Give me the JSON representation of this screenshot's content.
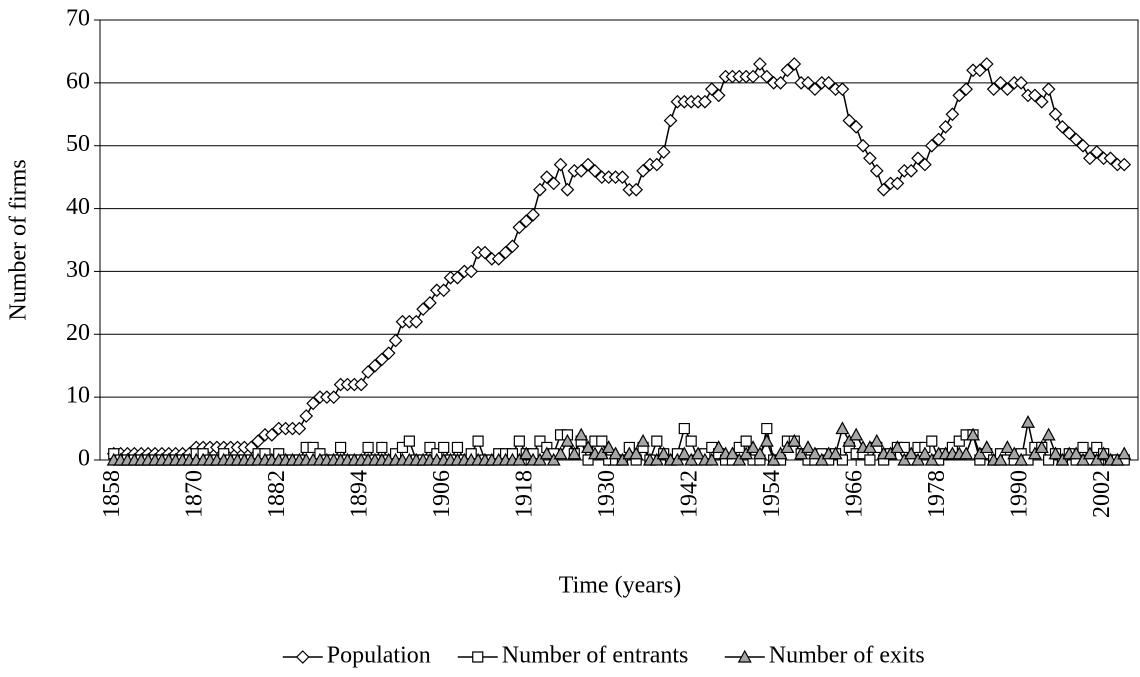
{
  "chart_data": {
    "type": "line",
    "x_label": "Time (years)",
    "y_label": "Number of firms",
    "xlim": [
      1856,
      2007
    ],
    "xticks": [
      1858,
      1870,
      1882,
      1894,
      1906,
      1918,
      1930,
      1942,
      1954,
      1966,
      1978,
      1990,
      2002
    ],
    "ylim": [
      0,
      70
    ],
    "yticks": [
      0,
      10,
      20,
      30,
      40,
      50,
      60,
      70
    ],
    "grid": true,
    "legend": "bottom",
    "x": [
      1858,
      1859,
      1860,
      1861,
      1862,
      1863,
      1864,
      1865,
      1866,
      1867,
      1868,
      1869,
      1870,
      1871,
      1872,
      1873,
      1874,
      1875,
      1876,
      1877,
      1878,
      1879,
      1880,
      1881,
      1882,
      1883,
      1884,
      1885,
      1886,
      1887,
      1888,
      1889,
      1890,
      1891,
      1892,
      1893,
      1894,
      1895,
      1896,
      1897,
      1898,
      1899,
      1900,
      1901,
      1902,
      1903,
      1904,
      1905,
      1906,
      1907,
      1908,
      1909,
      1910,
      1911,
      1912,
      1913,
      1914,
      1915,
      1916,
      1917,
      1918,
      1919,
      1920,
      1921,
      1922,
      1923,
      1924,
      1925,
      1926,
      1927,
      1928,
      1929,
      1930,
      1931,
      1932,
      1933,
      1934,
      1935,
      1936,
      1937,
      1938,
      1939,
      1940,
      1941,
      1942,
      1943,
      1944,
      1945,
      1946,
      1947,
      1948,
      1949,
      1950,
      1951,
      1952,
      1953,
      1954,
      1955,
      1956,
      1957,
      1958,
      1959,
      1960,
      1961,
      1962,
      1963,
      1964,
      1965,
      1966,
      1967,
      1968,
      1969,
      1970,
      1971,
      1972,
      1973,
      1974,
      1975,
      1976,
      1977,
      1978,
      1979,
      1980,
      1981,
      1982,
      1983,
      1984,
      1985,
      1986,
      1987,
      1988,
      1989,
      1990,
      1991,
      1992,
      1993,
      1994,
      1995,
      1996,
      1997,
      1998,
      1999,
      2000,
      2001,
      2002,
      2003,
      2004,
      2005
    ],
    "series": [
      {
        "name": "Population",
        "marker": "diamond",
        "color": "#ffffff",
        "values": [
          1,
          1,
          1,
          1,
          1,
          1,
          1,
          1,
          1,
          1,
          1,
          1,
          2,
          2,
          2,
          2,
          2,
          2,
          2,
          2,
          2,
          3,
          4,
          4,
          5,
          5,
          5,
          5,
          7,
          9,
          10,
          10,
          10,
          12,
          12,
          12,
          12,
          14,
          15,
          16,
          17,
          19,
          22,
          22,
          22,
          24,
          25,
          27,
          27,
          29,
          29,
          30,
          30,
          33,
          33,
          32,
          32,
          33,
          34,
          37,
          38,
          39,
          43,
          45,
          44,
          47,
          43,
          46,
          46,
          47,
          46,
          45,
          45,
          45,
          45,
          43,
          43,
          46,
          47,
          47,
          49,
          54,
          57,
          57,
          57,
          57,
          57,
          59,
          58,
          61,
          61,
          61,
          61,
          61,
          63,
          61,
          60,
          60,
          62,
          63,
          60,
          60,
          59,
          60,
          60,
          59,
          59,
          54,
          53,
          50,
          48,
          46,
          43,
          44,
          44,
          46,
          46,
          48,
          47,
          50,
          51,
          53,
          55,
          58,
          59,
          62,
          62,
          63,
          59,
          60,
          59,
          60,
          60,
          58,
          58,
          57,
          59,
          55,
          53,
          52,
          51,
          50,
          48,
          49,
          48,
          48,
          47,
          47
        ]
      },
      {
        "name": "Number of entrants",
        "marker": "square",
        "color": "#ffffff",
        "values": [
          1,
          0,
          0,
          0,
          0,
          0,
          0,
          0,
          0,
          0,
          0,
          0,
          1,
          1,
          0,
          0,
          1,
          0,
          0,
          0,
          0,
          1,
          1,
          0,
          1,
          0,
          0,
          0,
          2,
          2,
          1,
          0,
          0,
          2,
          0,
          0,
          0,
          2,
          0,
          2,
          0,
          1,
          2,
          3,
          0,
          0,
          2,
          1,
          2,
          0,
          2,
          0,
          1,
          3,
          0,
          0,
          1,
          1,
          1,
          3,
          1,
          1,
          3,
          2,
          1,
          4,
          4,
          1,
          3,
          0,
          3,
          3,
          0,
          0,
          0,
          2,
          0,
          2,
          0,
          3,
          1,
          0,
          1,
          5,
          3,
          0,
          1,
          2,
          1,
          0,
          0,
          2,
          3,
          0,
          0,
          5,
          0,
          0,
          3,
          3,
          1,
          0,
          0,
          1,
          0,
          1,
          0,
          2,
          1,
          1,
          0,
          2,
          0,
          1,
          2,
          2,
          0,
          2,
          2,
          3,
          0,
          1,
          2,
          3,
          4,
          4,
          0,
          1,
          0,
          1,
          0,
          0,
          1,
          0,
          2,
          2,
          0,
          1,
          0,
          1,
          0,
          2,
          0,
          2,
          1,
          0,
          0,
          0
        ]
      },
      {
        "name": "Number of exits",
        "marker": "triangle",
        "color": "#a6a6a6",
        "values": [
          0,
          0,
          0,
          0,
          0,
          0,
          0,
          0,
          0,
          0,
          0,
          0,
          0,
          0,
          0,
          0,
          0,
          0,
          0,
          0,
          0,
          0,
          0,
          0,
          0,
          0,
          0,
          0,
          0,
          0,
          0,
          0,
          0,
          0,
          0,
          0,
          0,
          0,
          0,
          0,
          0,
          0,
          0,
          0,
          0,
          0,
          0,
          0,
          0,
          0,
          0,
          0,
          0,
          0,
          0,
          0,
          0,
          0,
          0,
          0,
          1,
          0,
          0,
          1,
          0,
          1,
          3,
          1,
          4,
          2,
          1,
          1,
          2,
          1,
          0,
          1,
          1,
          3,
          0,
          0,
          1,
          0,
          0,
          1,
          0,
          1,
          0,
          0,
          2,
          1,
          1,
          0,
          1,
          2,
          1,
          3,
          0,
          1,
          2,
          3,
          1,
          2,
          1,
          0,
          1,
          1,
          5,
          3,
          4,
          2,
          2,
          3,
          1,
          1,
          2,
          0,
          1,
          0,
          1,
          0,
          1,
          1,
          1,
          1,
          1,
          4,
          1,
          2,
          0,
          0,
          2,
          1,
          0,
          6,
          1,
          2,
          4,
          1,
          0,
          1,
          1,
          0,
          1,
          0,
          1,
          0,
          0,
          1
        ]
      }
    ]
  }
}
